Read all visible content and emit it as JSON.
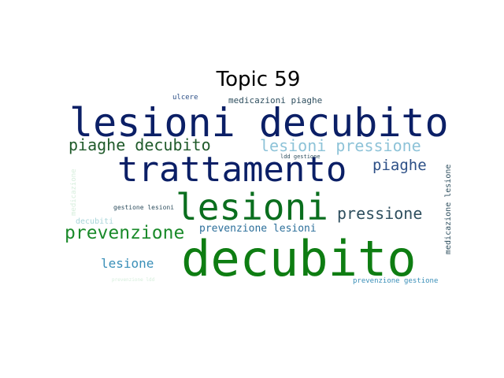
{
  "title": "Topic 59",
  "words": {
    "lesioni_decubito": "lesioni decubito",
    "trattamento": "trattamento",
    "lesioni": "lesioni",
    "decubito": "decubito",
    "prevenzione": "prevenzione",
    "piaghe_decubito": "piaghe decubito",
    "lesioni_pressione": "lesioni pressione",
    "piaghe": "piaghe",
    "pressione": "pressione",
    "prevenzione_lesioni": "prevenzione lesioni",
    "lesione": "lesione",
    "medicazioni_piaghe": "medicazioni piaghe",
    "ulcere": "ulcere",
    "ldd_gestione": "ldd gestione",
    "gestione_lesioni": "gestione lesioni",
    "decubiti": "decubiti",
    "medicazione_lesione": "medicazione lesione",
    "medicazione": "medicazione",
    "prevenzione_gestione": "prevenzione gestione",
    "prevenzione_ldd": "prevenzione ldd"
  },
  "colors": {
    "navy": "#0b1f66",
    "dark_green": "#0a6e1e",
    "green": "#0e7d12",
    "mid_green": "#1a8a2a",
    "light_blue": "#8ec3d8",
    "steel_blue": "#2c4f86",
    "slate": "#2f4f5f",
    "teal": "#3a8fb8",
    "pale_teal": "#a9d5d9",
    "pale_mint": "#d6eedc"
  }
}
